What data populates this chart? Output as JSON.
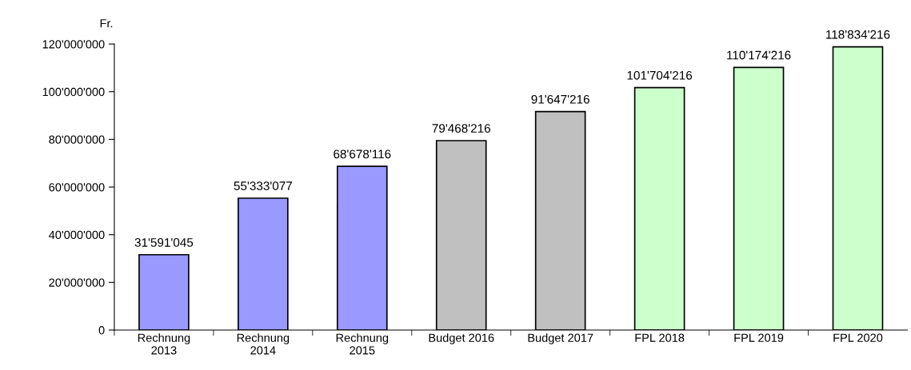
{
  "chart_data": {
    "type": "bar",
    "ylabel": "Fr.",
    "categories": [
      "Rechnung\n2013",
      "Rechnung\n2014",
      "Rechnung\n2015",
      "Budget 2016",
      "Budget 2017",
      "FPL 2018",
      "FPL 2019",
      "FPL 2020"
    ],
    "values": [
      31591045,
      55333077,
      68678116,
      79468216,
      91647216,
      101704216,
      110174216,
      118834216
    ],
    "colors": [
      "#9999ff",
      "#9999ff",
      "#9999ff",
      "#c0c0c0",
      "#c0c0c0",
      "#ccffcc",
      "#ccffcc",
      "#ccffcc"
    ],
    "value_labels": [
      "31'591'045",
      "55'333'077",
      "68'678'116",
      "79'468'216",
      "91'647'216",
      "101'704'216",
      "110'174'216",
      "118'834'216"
    ],
    "ylim": [
      0,
      120000000
    ],
    "yticks": [
      0,
      {
        "value": 20000000,
        "label": "20'000'000"
      },
      {
        "value": 40000000,
        "label": "40'000'000"
      },
      {
        "value": 60000000,
        "label": "60'000'000"
      },
      {
        "value": 80000000,
        "label": "80'000'000"
      },
      {
        "value": 100000000,
        "label": "100'000'000"
      },
      {
        "value": 120000000,
        "label": "120'000'000"
      }
    ],
    "grid": false,
    "legend": false
  }
}
